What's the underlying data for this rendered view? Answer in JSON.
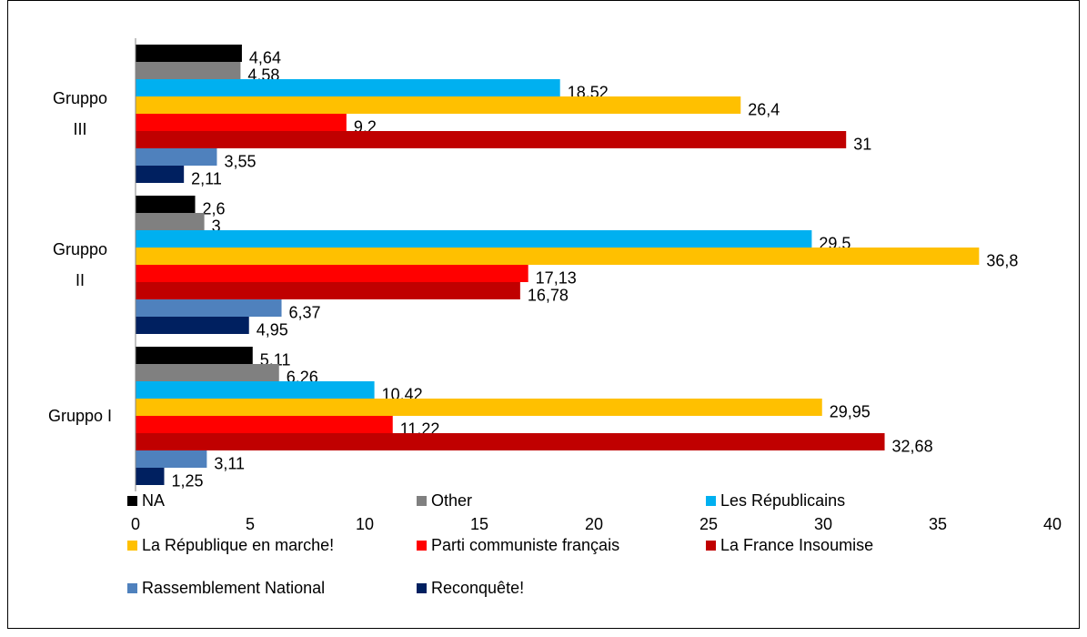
{
  "chart_data": {
    "type": "hbar",
    "categories": [
      "Gruppo I",
      "Gruppo II",
      "Gruppo III"
    ],
    "series": [
      {
        "name": "NA",
        "color": "#000000",
        "values": [
          5.11,
          2.6,
          4.64
        ],
        "value_labels": [
          "5,11",
          "2,6",
          "4,64"
        ]
      },
      {
        "name": "Other",
        "color": "#808080",
        "values": [
          6.26,
          3,
          4.58
        ],
        "value_labels": [
          "6,26",
          "3",
          "4,58"
        ]
      },
      {
        "name": "Les Républicains",
        "color": "#00b0f0",
        "values": [
          10.42,
          29.5,
          18.52
        ],
        "value_labels": [
          "10,42",
          "29,5",
          "18,52"
        ]
      },
      {
        "name": "La République en marche!",
        "color": "#ffc000",
        "values": [
          29.95,
          36.8,
          26.4
        ],
        "value_labels": [
          "29,95",
          "36,8",
          "26,4"
        ]
      },
      {
        "name": "Parti communiste français",
        "color": "#ff0000",
        "values": [
          11.22,
          17.13,
          9.2
        ],
        "value_labels": [
          "11,22",
          "17,13",
          "9,2"
        ]
      },
      {
        "name": "La France Insoumise",
        "color": "#c00000",
        "values": [
          32.68,
          16.78,
          31
        ],
        "value_labels": [
          "32,68",
          "16,78",
          "31"
        ]
      },
      {
        "name": "Rassemblement National",
        "color": "#4f81bd",
        "values": [
          3.11,
          6.37,
          3.55
        ],
        "value_labels": [
          "3,11",
          "6,37",
          "3,55"
        ]
      },
      {
        "name": "Reconquête!",
        "color": "#002060",
        "values": [
          1.25,
          4.95,
          2.11
        ],
        "value_labels": [
          "1,25",
          "4,95",
          "2,11"
        ]
      }
    ],
    "xlim": [
      0,
      40
    ],
    "xticks": [
      0,
      5,
      10,
      15,
      20,
      25,
      30,
      35,
      40
    ],
    "grid": false,
    "legend": "bottom"
  }
}
